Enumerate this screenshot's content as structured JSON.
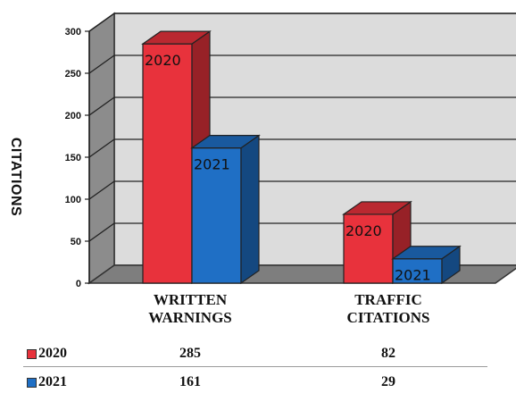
{
  "chart_data": {
    "type": "bar",
    "title": "",
    "ylabel": "CITATIONS",
    "xlabel": "",
    "categories": [
      [
        "WRITTEN",
        "WARNINGS"
      ],
      [
        "TRAFFIC",
        "CITATIONS"
      ]
    ],
    "series": [
      {
        "name": "2020",
        "values": [
          285,
          82
        ],
        "color": "#e8323c"
      },
      {
        "name": "2021",
        "values": [
          161,
          29
        ],
        "color": "#1f6fc5"
      }
    ],
    "ylim": [
      0,
      300
    ],
    "yticks": [
      "0",
      "50",
      "100",
      "150",
      "200",
      "250",
      "300"
    ],
    "grid": true,
    "three_d": true,
    "bar_labels": [
      "2020",
      "2021"
    ],
    "data_table": true
  }
}
